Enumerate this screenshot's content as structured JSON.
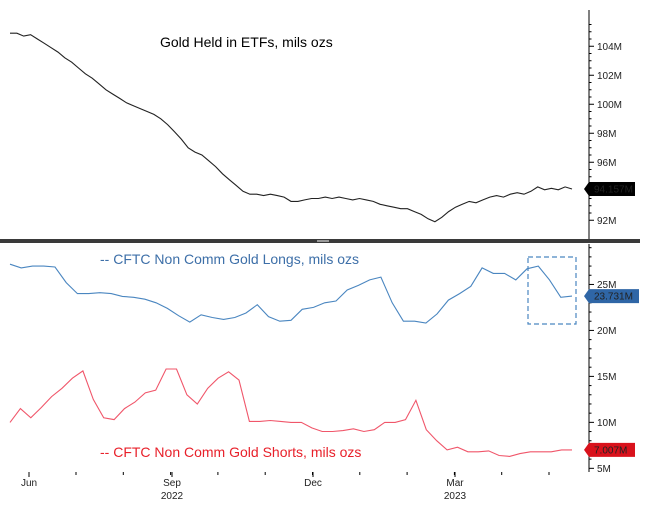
{
  "chart_data": [
    {
      "type": "line",
      "title": "Gold Held in ETFs, mils ozs",
      "ylim": [
        90.5,
        106.5
      ],
      "y_ticks": [
        "92M",
        "94M",
        "96M",
        "98M",
        "100M",
        "102M",
        "104M"
      ],
      "y_tick_values": [
        92,
        94,
        96,
        98,
        100,
        102,
        104
      ],
      "last_value_label": "94.157M",
      "last_value": 94.157,
      "color": "#222222",
      "badge_color": "#000000",
      "series": [
        {
          "name": "Gold Held in ETFs",
          "values": [
            104.9,
            104.9,
            104.7,
            104.8,
            104.5,
            104.2,
            103.9,
            103.6,
            103.2,
            102.9,
            102.5,
            102.1,
            101.8,
            101.4,
            101.0,
            100.7,
            100.4,
            100.1,
            99.9,
            99.7,
            99.5,
            99.3,
            99.0,
            98.6,
            98.1,
            97.6,
            97.0,
            96.7,
            96.5,
            96.1,
            95.7,
            95.2,
            94.8,
            94.4,
            94.0,
            93.8,
            93.8,
            93.7,
            93.8,
            93.7,
            93.6,
            93.3,
            93.3,
            93.4,
            93.5,
            93.5,
            93.6,
            93.5,
            93.6,
            93.5,
            93.4,
            93.5,
            93.4,
            93.3,
            93.1,
            93.0,
            92.9,
            92.8,
            92.8,
            92.6,
            92.4,
            92.1,
            91.9,
            92.2,
            92.6,
            92.9,
            93.1,
            93.3,
            93.2,
            93.4,
            93.6,
            93.7,
            93.6,
            93.8,
            93.9,
            93.8,
            94.0,
            94.3,
            94.1,
            94.2,
            94.1,
            94.3,
            94.157
          ]
        }
      ]
    },
    {
      "type": "line",
      "title": "-- CFTC Non Comm Gold Longs, mils ozs",
      "title_color": "#3d6fa8",
      "color": "#4a86c0",
      "badge_color": "#2f66a6",
      "last_value_label": "23.731M",
      "last_value": 23.731,
      "series": [
        {
          "name": "CFTC Non Comm Gold Longs",
          "values": [
            27.2,
            26.8,
            27.0,
            27.0,
            26.9,
            25.2,
            24.0,
            24.0,
            24.1,
            24.0,
            23.7,
            23.6,
            23.4,
            23.0,
            22.4,
            21.6,
            20.9,
            21.7,
            21.4,
            21.2,
            21.4,
            21.9,
            22.8,
            21.5,
            21.0,
            21.1,
            22.3,
            22.5,
            23.0,
            23.2,
            24.4,
            24.9,
            25.5,
            25.8,
            23.0,
            21.0,
            21.0,
            20.8,
            21.8,
            23.3,
            24.0,
            24.8,
            26.8,
            26.2,
            26.2,
            25.5,
            26.7,
            27.0,
            25.5,
            23.6,
            23.731
          ]
        }
      ]
    },
    {
      "type": "line",
      "title": "-- CFTC Non Comm Gold Shorts, mils ozs",
      "title_color": "#e8202a",
      "color": "#f0566a",
      "badge_color": "#d9121c",
      "last_value_label": "7.007M",
      "last_value": 7.007,
      "ylim": [
        4.6,
        29.4
      ],
      "y_ticks": [
        "5M",
        "10M",
        "15M",
        "20M",
        "25M"
      ],
      "y_tick_values": [
        5,
        10,
        15,
        20,
        25
      ],
      "series": [
        {
          "name": "CFTC Non Comm Gold Shorts",
          "values": [
            10.0,
            11.5,
            10.5,
            11.6,
            12.8,
            13.7,
            14.8,
            15.6,
            12.5,
            10.5,
            10.3,
            11.5,
            12.2,
            13.2,
            13.5,
            15.8,
            15.8,
            13.0,
            12.0,
            13.7,
            14.8,
            15.5,
            14.6,
            10.1,
            10.1,
            10.2,
            10.1,
            10.0,
            10.0,
            9.4,
            9.0,
            9.0,
            9.1,
            9.3,
            9.0,
            9.2,
            10.0,
            10.0,
            10.3,
            12.4,
            9.2,
            8.0,
            7.0,
            7.3,
            6.8,
            6.8,
            6.9,
            6.4,
            6.3,
            6.6,
            6.8,
            6.8,
            6.8,
            7.0,
            7.007
          ]
        }
      ]
    }
  ],
  "x_axis": {
    "ticks": [
      {
        "label": "Jun",
        "year": ""
      },
      {
        "label": "Sep",
        "year": "2022"
      },
      {
        "label": "Dec",
        "year": ""
      },
      {
        "label": "Mar",
        "year": "2023"
      }
    ]
  },
  "highlight_box_color": "#4a86c0"
}
